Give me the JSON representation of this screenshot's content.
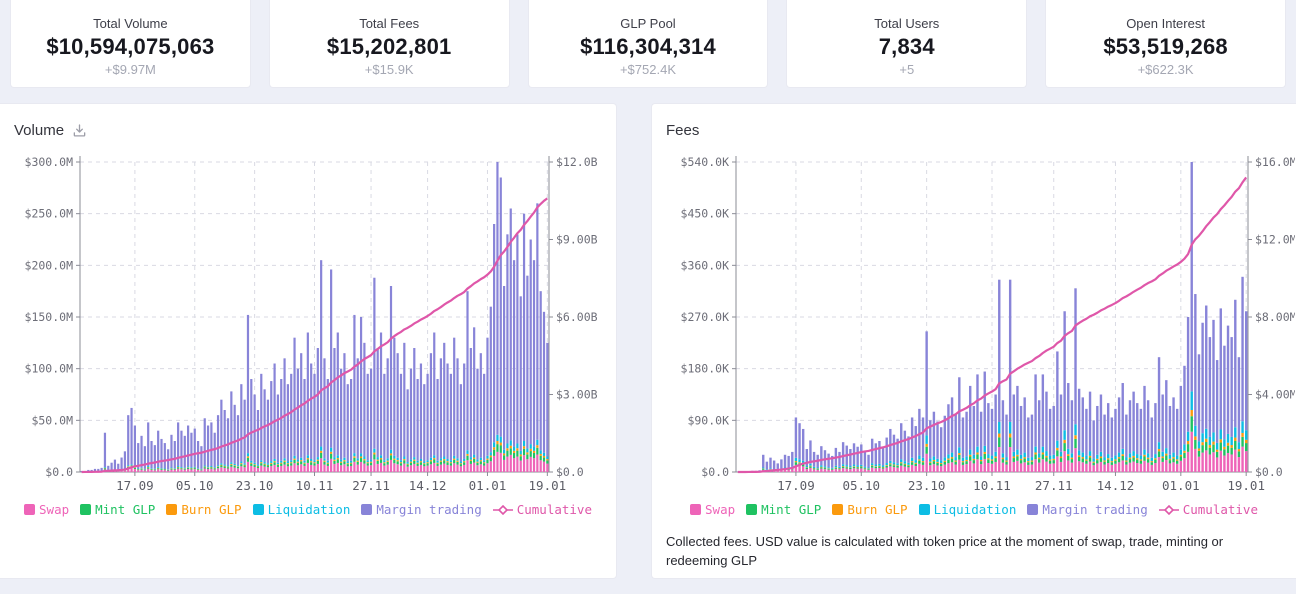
{
  "stats": [
    {
      "label": "Total Volume",
      "value": "$10,594,075,063",
      "delta": "+$9.97M"
    },
    {
      "label": "Total Fees",
      "value": "$15,202,801",
      "delta": "+$15.9K"
    },
    {
      "label": "GLP Pool",
      "value": "$116,304,314",
      "delta": "+$752.4K"
    },
    {
      "label": "Total Users",
      "value": "7,834",
      "delta": "+5"
    },
    {
      "label": "Open Interest",
      "value": "$53,519,268",
      "delta": "+$622.3K"
    }
  ],
  "colors": {
    "swap": "#ee64b8",
    "mint_glp": "#1fc261",
    "burn_glp": "#fb9a0d",
    "liquidation": "#0dbde4",
    "margin_trading": "#8884d8",
    "cumulative": "#df57a9",
    "grid": "#d9dae3",
    "axis": "#8b8c96"
  },
  "legend": [
    {
      "label": "Swap",
      "color_key": "swap",
      "marker": "square"
    },
    {
      "label": "Mint GLP",
      "color_key": "mint_glp",
      "marker": "square"
    },
    {
      "label": "Burn GLP",
      "color_key": "burn_glp",
      "marker": "square"
    },
    {
      "label": "Liquidation",
      "color_key": "liquidation",
      "marker": "square"
    },
    {
      "label": "Margin trading",
      "color_key": "margin_trading",
      "marker": "square"
    },
    {
      "label": "Cumulative",
      "color_key": "cumulative",
      "marker": "line-diamond"
    }
  ],
  "chart_data": [
    {
      "type": "bar",
      "title": "Volume",
      "has_download_icon": true,
      "legend_position": "bottom",
      "grid": "dashed",
      "left_axis": {
        "max": 300,
        "ticks": [
          "$300.0M",
          "$250.0M",
          "$200.0M",
          "$150.0M",
          "$100.0M",
          "$50.0M",
          "$0.0"
        ]
      },
      "right_axis": {
        "max": 12000,
        "ticks": [
          "$12.0B",
          "$9.00B",
          "$6.00B",
          "$3.00B",
          "$0.0"
        ]
      },
      "x_tick_labels": [
        "17.09",
        "05.10",
        "23.10",
        "10.11",
        "27.11",
        "14.12",
        "01.01",
        "19.01"
      ],
      "x_tick_positions": [
        16,
        34,
        52,
        70,
        87,
        104,
        122,
        140
      ],
      "stack_order": [
        "swap",
        "mint_glp",
        "burn_glp",
        "liquidation",
        "margin_trading"
      ],
      "stack_fractions": {
        "swap": 0.065,
        "mint_glp": 0.025,
        "burn_glp": 0.01,
        "liquidation": 0.02,
        "margin_trading": 0.88
      },
      "bar_totals_musd": [
        1,
        1,
        2,
        2,
        3,
        3,
        4,
        38,
        6,
        9,
        12,
        8,
        14,
        20,
        55,
        62,
        45,
        28,
        35,
        25,
        48,
        30,
        26,
        40,
        32,
        28,
        22,
        36,
        30,
        48,
        40,
        35,
        45,
        38,
        42,
        30,
        25,
        52,
        45,
        48,
        38,
        55,
        70,
        60,
        52,
        78,
        65,
        55,
        85,
        70,
        152,
        90,
        75,
        60,
        95,
        80,
        70,
        88,
        105,
        75,
        90,
        110,
        85,
        95,
        130,
        100,
        115,
        90,
        135,
        105,
        95,
        120,
        205,
        110,
        90,
        196,
        120,
        135,
        100,
        115,
        85,
        90,
        152,
        110,
        150,
        125,
        95,
        100,
        188,
        120,
        135,
        95,
        110,
        180,
        130,
        115,
        95,
        125,
        80,
        100,
        120,
        90,
        105,
        85,
        95,
        115,
        135,
        90,
        110,
        125,
        105,
        95,
        130,
        110,
        85,
        105,
        175,
        120,
        140,
        100,
        115,
        95,
        130,
        160,
        240,
        300,
        285,
        180,
        230,
        255,
        205,
        230,
        170,
        250,
        190,
        225,
        205,
        260,
        175,
        155,
        125
      ],
      "cumulative_final_musd": 10594
    },
    {
      "type": "bar",
      "title": "Fees",
      "has_download_icon": false,
      "legend_position": "bottom",
      "grid": "dashed",
      "left_axis": {
        "max": 540,
        "ticks": [
          "$540.0K",
          "$450.0K",
          "$360.0K",
          "$270.0K",
          "$180.0K",
          "$90.0K",
          "$0.0"
        ]
      },
      "right_axis": {
        "max": 16000,
        "ticks": [
          "$16.0M",
          "$12.0M",
          "$8.00M",
          "$4.00M",
          "$0.0"
        ]
      },
      "x_tick_labels": [
        "17.09",
        "05.10",
        "23.10",
        "10.11",
        "27.11",
        "14.12",
        "01.01",
        "19.01"
      ],
      "x_tick_positions": [
        16,
        34,
        52,
        70,
        87,
        104,
        122,
        140
      ],
      "stack_order": [
        "swap",
        "mint_glp",
        "burn_glp",
        "liquidation",
        "margin_trading"
      ],
      "stack_fractions": {
        "swap": 0.13,
        "mint_glp": 0.05,
        "burn_glp": 0.02,
        "liquidation": 0.06,
        "margin_trading": 0.74
      },
      "bar_totals_kusd": [
        0.5,
        0.5,
        1,
        1,
        2,
        2,
        3,
        30,
        18,
        25,
        20,
        15,
        22,
        30,
        28,
        35,
        95,
        85,
        75,
        40,
        55,
        35,
        30,
        45,
        38,
        32,
        28,
        42,
        35,
        52,
        46,
        40,
        50,
        44,
        48,
        36,
        30,
        58,
        50,
        54,
        44,
        60,
        75,
        65,
        58,
        85,
        72,
        62,
        95,
        80,
        110,
        95,
        245,
        90,
        105,
        88,
        78,
        98,
        118,
        130,
        100,
        165,
        95,
        105,
        150,
        115,
        170,
        105,
        175,
        120,
        110,
        135,
        335,
        125,
        100,
        335,
        135,
        150,
        115,
        130,
        95,
        100,
        170,
        125,
        170,
        140,
        110,
        115,
        210,
        135,
        280,
        155,
        125,
        320,
        145,
        130,
        110,
        140,
        90,
        115,
        135,
        100,
        120,
        95,
        110,
        130,
        155,
        100,
        125,
        140,
        120,
        110,
        150,
        125,
        95,
        120,
        200,
        135,
        160,
        115,
        130,
        110,
        150,
        185,
        270,
        540,
        310,
        205,
        260,
        290,
        235,
        265,
        195,
        285,
        220,
        255,
        235,
        300,
        200,
        340,
        280
      ],
      "cumulative_final_kusd": 15203,
      "footnote": "Collected fees. USD value is calculated with token price at the moment of swap, trade, minting or redeeming GLP"
    }
  ]
}
